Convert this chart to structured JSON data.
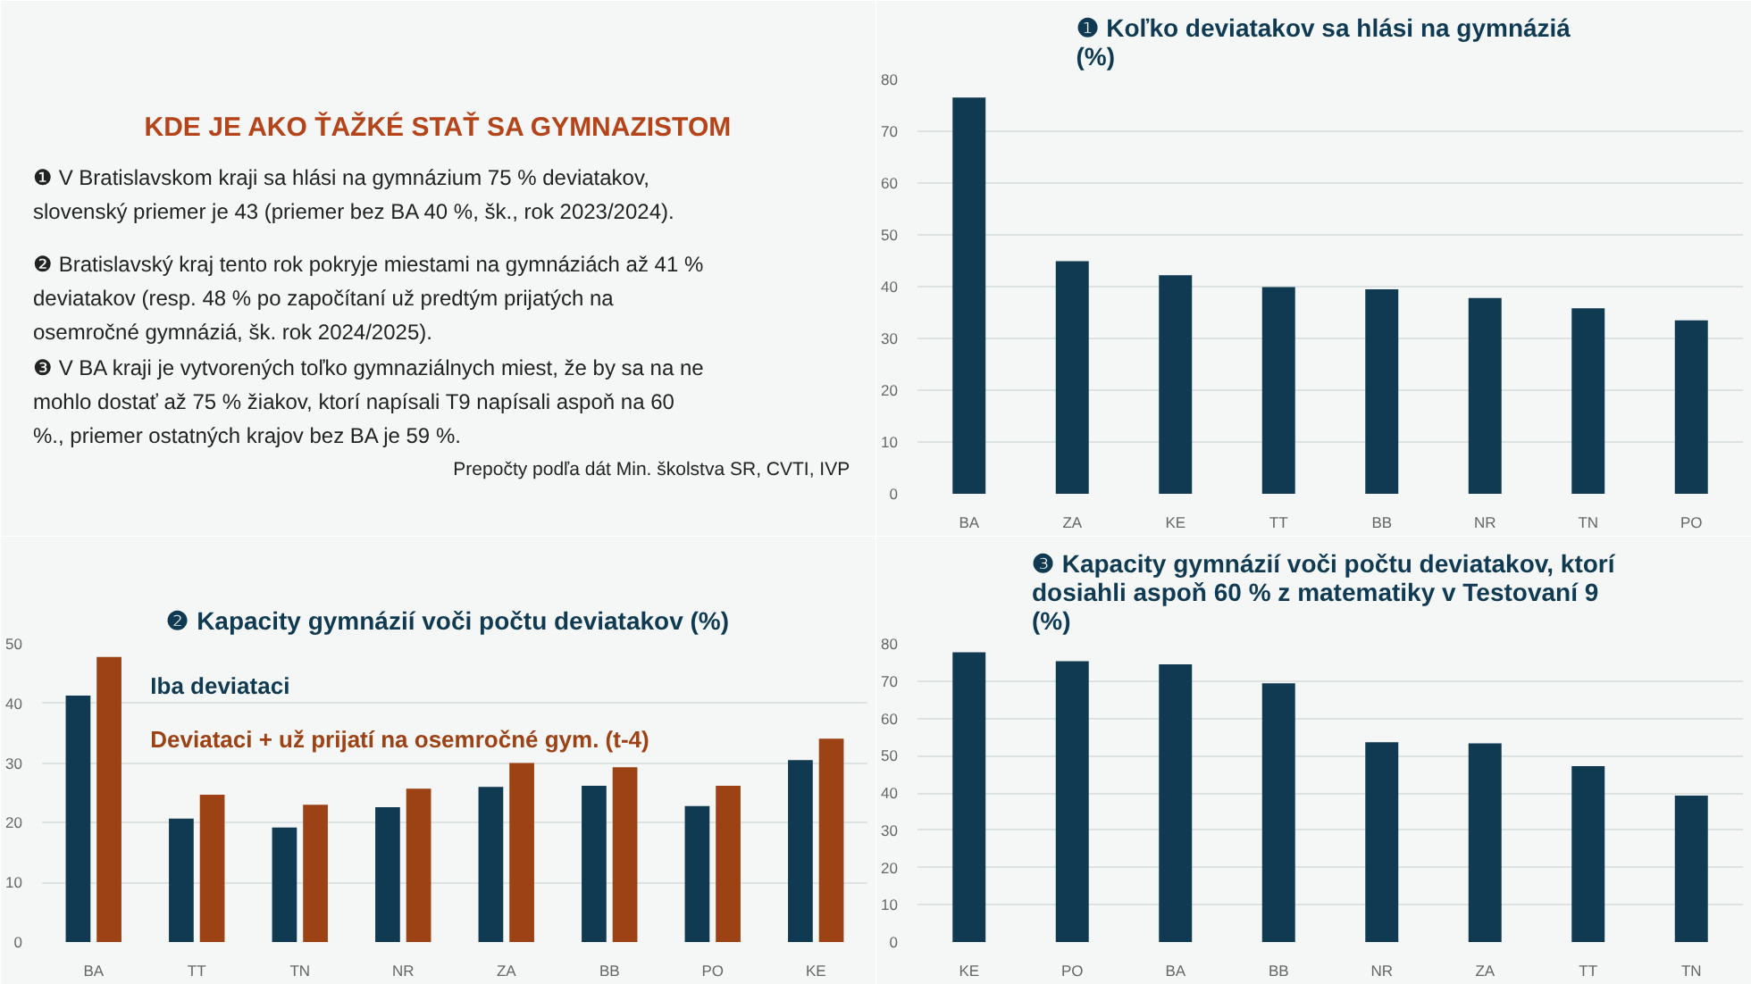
{
  "chart_data": [
    {
      "type": "other",
      "title": "KDE JE AKO ŤAŽKÉ STAŤ SA GYMNAZISTOM",
      "annotations": [
        "❶  V Bratislavskom kraji sa hlási na gymnázium 75 % deviatakov,\n     slovenský priemer je 43 (priemer bez BA 40 %, šk., rok 2023/2024).",
        "❷  Bratislavský kraj tento rok pokryje miestami na gymnáziách až 41 %\n     deviatakov (resp. 48 % po započítaní už predtým prijatých na\n     osemročné gymnáziá, šk. rok 2024/2025).",
        "❸  V BA kraji je vytvorených toľko gymnaziálnych miest, že by sa na ne\n     mohlo dostať až 75 % žiakov, ktorí napísali T9 napísali aspoň na 60\n     %., priemer ostatných krajov bez BA je 59 %.",
        "Prepočty podľa dát Min. školstva SR,  CVTI, IVP"
      ]
    },
    {
      "type": "bar",
      "title": "❶   Koľko deviatakov sa hlási na gymnáziá\n(%)",
      "categories": [
        "BA",
        "ZA",
        "KE",
        "TT",
        "BB",
        "NR",
        "TN",
        "PO"
      ],
      "color": "#0f3a52",
      "values": [
        76.5,
        44.9,
        42.2,
        39.9,
        39.5,
        37.8,
        35.8,
        33.5
      ],
      "ylim": [
        0,
        80
      ],
      "yticks": [
        0,
        10,
        20,
        30,
        40,
        50,
        60,
        70,
        80
      ],
      "grid": "y"
    },
    {
      "type": "bar",
      "title": "❷   Kapacity gymnázií voči počtu deviatakov (%)",
      "categories": [
        "BA",
        "TT",
        "TN",
        "NR",
        "ZA",
        "BB",
        "PO",
        "KE"
      ],
      "series": [
        {
          "name": "Iba deviataci",
          "color": "#0f3a52",
          "values": [
            41.3,
            20.7,
            19.2,
            22.6,
            26.0,
            26.2,
            22.8,
            30.5
          ]
        },
        {
          "name": "Deviataci + už prijatí na osemročné gym. (t-4)",
          "color": "#9c4214",
          "values": [
            47.8,
            24.7,
            23.0,
            25.7,
            30.0,
            29.3,
            26.2,
            34.1
          ]
        }
      ],
      "ylim": [
        0,
        50
      ],
      "yticks": [
        0,
        10,
        20,
        30,
        40,
        50
      ],
      "grid": "y",
      "legend": "top left"
    },
    {
      "type": "bar",
      "title": "❸   Kapacity gymnázií voči počtu deviatakov, ktorí\ndosiahli aspoň 60 % z matematiky v Testovaní 9\n(%)",
      "categories": [
        "KE",
        "PO",
        "BA",
        "BB",
        "NR",
        "ZA",
        "TT",
        "TN"
      ],
      "color": "#0f3a52",
      "values": [
        77.7,
        75.3,
        74.5,
        69.4,
        53.6,
        53.3,
        47.2,
        39.3
      ],
      "ylim": [
        0,
        80
      ],
      "yticks": [
        0,
        10,
        20,
        30,
        40,
        50,
        60,
        70,
        80
      ],
      "grid": "y"
    }
  ]
}
